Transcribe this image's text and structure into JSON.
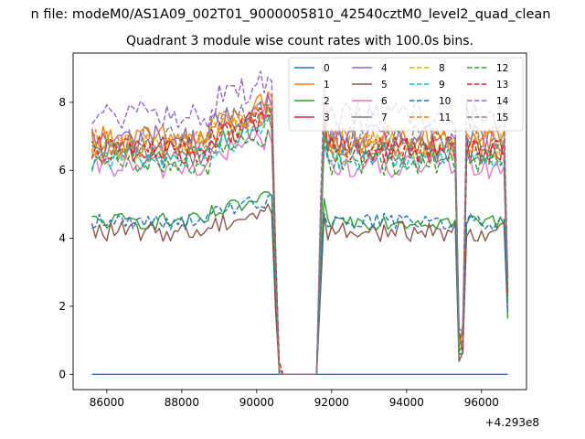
{
  "figure": {
    "suptitle": "n file: modeM0/AS1A09_002T01_9000005810_42540cztM0_level2_quad_clean",
    "title": "Quadrant 3 module wise count rates with 100.0s bins.",
    "x_offset_text": "+4.293e8"
  },
  "chart_data": {
    "type": "line",
    "title": "Quadrant 3 module wise count rates with 100.0s bins.",
    "xlabel": "",
    "ylabel": "",
    "x_offset": 429300000,
    "xlim": [
      85100,
      97200
    ],
    "ylim": [
      -0.45,
      9.45
    ],
    "x_ticks": [
      86000,
      88000,
      90000,
      92000,
      94000,
      96000
    ],
    "x_tick_labels": [
      "86000",
      "88000",
      "90000",
      "92000",
      "94000",
      "96000"
    ],
    "y_ticks": [
      0,
      2,
      4,
      6,
      8
    ],
    "y_tick_labels": [
      "0",
      "2",
      "4",
      "6",
      "8"
    ],
    "grid": false,
    "legend": {
      "placement": "top-right",
      "columns": 4
    },
    "bin_seconds": 100.0,
    "segments": [
      {
        "x_start": 85600,
        "x_end": 90600
      },
      {
        "x_start": 91700,
        "x_end": 95400
      },
      {
        "x_start": 95500,
        "x_end": 96700
      }
    ],
    "series": [
      {
        "name": "0",
        "color": "#1f77b4",
        "dash": "solid",
        "level": 0.0,
        "noise": 0.0
      },
      {
        "name": "1",
        "color": "#ff7f0e",
        "dash": "solid",
        "level": 6.9,
        "noise": 0.45
      },
      {
        "name": "2",
        "color": "#2ca02c",
        "dash": "solid",
        "level": 4.5,
        "noise": 0.25
      },
      {
        "name": "3",
        "color": "#d62728",
        "dash": "solid",
        "level": 6.6,
        "noise": 0.4
      },
      {
        "name": "4",
        "color": "#9467bd",
        "dash": "solid",
        "level": 6.9,
        "noise": 0.45
      },
      {
        "name": "5",
        "color": "#8c564b",
        "dash": "solid",
        "level": 4.2,
        "noise": 0.3
      },
      {
        "name": "6",
        "color": "#e377c2",
        "dash": "solid",
        "level": 6.1,
        "noise": 0.35
      },
      {
        "name": "7",
        "color": "#7f7f7f",
        "dash": "solid",
        "level": 6.5,
        "noise": 0.35
      },
      {
        "name": "8",
        "color": "#bcbd22",
        "dash": "dashed",
        "level": 6.7,
        "noise": 0.4
      },
      {
        "name": "9",
        "color": "#17becf",
        "dash": "dashed",
        "level": 6.4,
        "noise": 0.4
      },
      {
        "name": "10",
        "color": "#1f77b4",
        "dash": "dashed",
        "level": 4.5,
        "noise": 0.25
      },
      {
        "name": "11",
        "color": "#ff7f0e",
        "dash": "dashed",
        "level": 6.8,
        "noise": 0.4
      },
      {
        "name": "12",
        "color": "#2ca02c",
        "dash": "dashed",
        "level": 6.2,
        "noise": 0.35
      },
      {
        "name": "13",
        "color": "#d62728",
        "dash": "dashed",
        "level": 6.6,
        "noise": 0.4
      },
      {
        "name": "14",
        "color": "#9467bd",
        "dash": "dashed",
        "level": 7.6,
        "noise": 0.45
      },
      {
        "name": "15",
        "color": "#7f7f7f",
        "dash": "dashed",
        "level": 6.9,
        "noise": 0.4
      }
    ]
  }
}
